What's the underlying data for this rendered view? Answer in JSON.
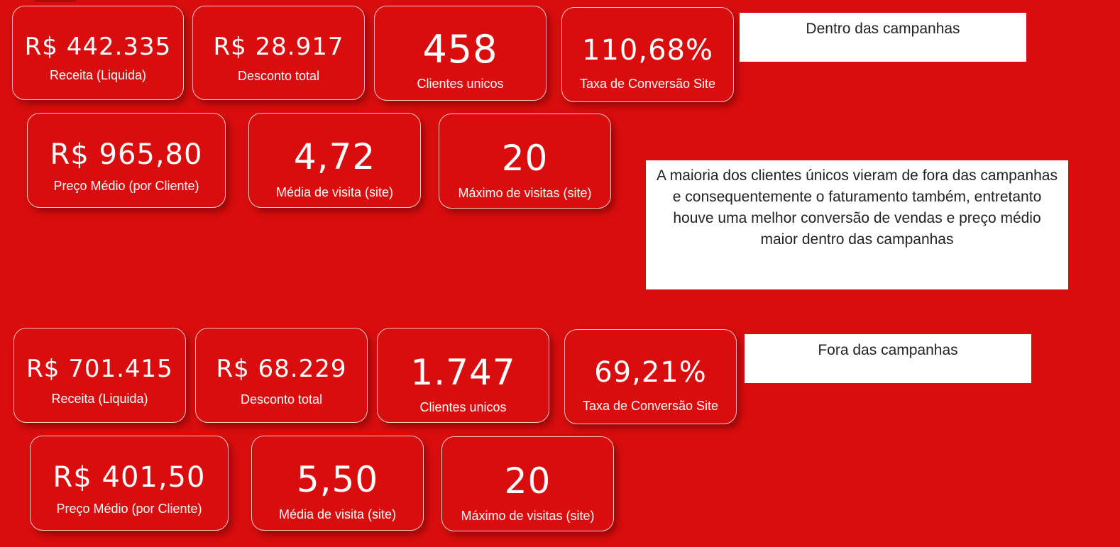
{
  "sections": {
    "inside": {
      "title": "Dentro das campanhas",
      "kpis": [
        {
          "value": "R$ 442.335",
          "label": "Receita (Liquida)"
        },
        {
          "value": "R$ 28.917",
          "label": "Desconto total"
        },
        {
          "value": "458",
          "label": "Clientes unicos"
        },
        {
          "value": "110,68%",
          "label": "Taxa de Conversão Site"
        },
        {
          "value": "R$ 965,80",
          "label": "Preço Médio (por Cliente)"
        },
        {
          "value": "4,72",
          "label": "Média de visita (site)"
        },
        {
          "value": "20",
          "label": "Máximo de visitas (site)"
        }
      ]
    },
    "outside": {
      "title": "Fora das campanhas",
      "kpis": [
        {
          "value": "R$ 701.415",
          "label": "Receita (Liquida)"
        },
        {
          "value": "R$ 68.229",
          "label": "Desconto total"
        },
        {
          "value": "1.747",
          "label": "Clientes unicos"
        },
        {
          "value": "69,21%",
          "label": "Taxa de Conversão Site"
        },
        {
          "value": "R$ 401,50",
          "label": "Preço Médio (por Cliente)"
        },
        {
          "value": "5,50",
          "label": "Média de visita (site)"
        },
        {
          "value": "20",
          "label": "Máximo de visitas (site)"
        }
      ]
    }
  },
  "comment": "A maioria dos clientes únicos vieram de fora das campanhas e consequentemente o faturamento também, entretanto houve uma melhor conversão de vendas e preço médio maior dentro das campanhas",
  "colors": {
    "background": "#d90d0d",
    "card_border": "#f3c9c9",
    "text_light": "#ffffff",
    "note_background": "#ffffff",
    "note_text": "#222222"
  }
}
